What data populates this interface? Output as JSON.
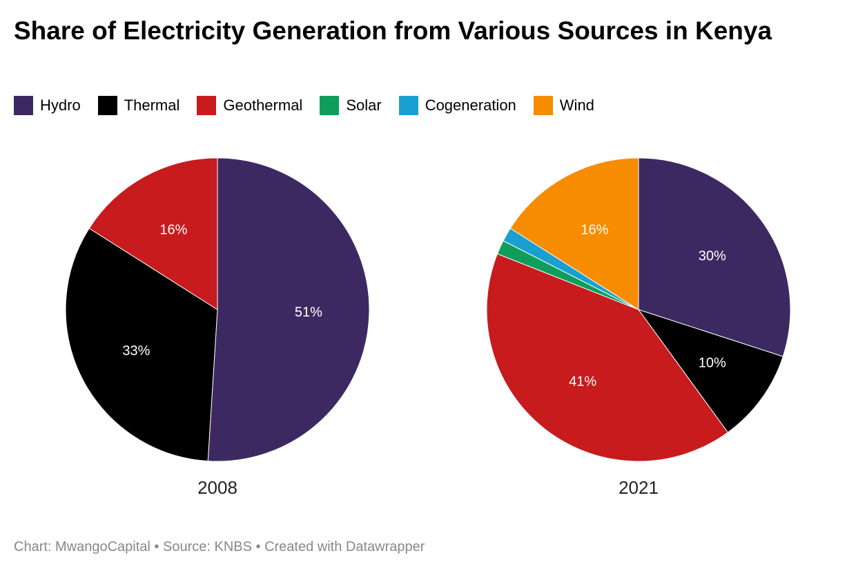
{
  "title": "Share of Electricity Generation from Various Sources in Kenya",
  "legend": [
    {
      "name": "Hydro",
      "color": "#3d2962"
    },
    {
      "name": "Thermal",
      "color": "#000000"
    },
    {
      "name": "Geothermal",
      "color": "#c71b1d"
    },
    {
      "name": "Solar",
      "color": "#0e9e5c"
    },
    {
      "name": "Cogeneration",
      "color": "#1aa0d0"
    },
    {
      "name": "Wind",
      "color": "#f78c00"
    }
  ],
  "chart_data": [
    {
      "type": "pie",
      "label": "2008",
      "slices": [
        {
          "name": "Hydro",
          "value": 51,
          "display": "51%"
        },
        {
          "name": "Thermal",
          "value": 33,
          "display": "33%"
        },
        {
          "name": "Geothermal",
          "value": 16,
          "display": "16%"
        }
      ]
    },
    {
      "type": "pie",
      "label": "2021",
      "slices": [
        {
          "name": "Hydro",
          "value": 30,
          "display": "30%"
        },
        {
          "name": "Thermal",
          "value": 10,
          "display": "10%"
        },
        {
          "name": "Geothermal",
          "value": 41,
          "display": "41%"
        },
        {
          "name": "Solar",
          "value": 1.5,
          "display": ""
        },
        {
          "name": "Cogeneration",
          "value": 1.5,
          "display": ""
        },
        {
          "name": "Wind",
          "value": 16,
          "display": "16%"
        }
      ]
    }
  ],
  "footer": {
    "chart": "Chart: MwangoCapital",
    "sep1": " • ",
    "source": "Source: KNBS",
    "sep2": " • ",
    "created": "Created with Datawrapper"
  }
}
